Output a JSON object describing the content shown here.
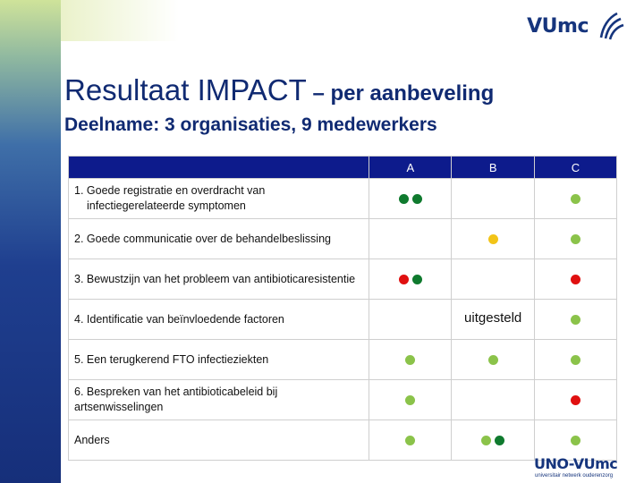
{
  "header": {
    "logo_text": "VUmc"
  },
  "slide": {
    "title_main": "Resultaat IMPACT",
    "title_sub": " – per aanbeveling",
    "subtitle": "Deelname: 3 organisaties, 9 medewerkers"
  },
  "table": {
    "columns": [
      "",
      "A",
      "B",
      "C"
    ],
    "rows": [
      {
        "label_line1": "1. Goede registratie en overdracht van",
        "label_line2": "infectiegerelateerde symptomen",
        "A": [
          "dark-green",
          "dark-green"
        ],
        "B": [],
        "C": [
          "light-green"
        ]
      },
      {
        "label_line1": "2. Goede communicatie over de behandelbeslissing",
        "label_line2": "",
        "A": [],
        "B": [
          "yellow"
        ],
        "C": [
          "light-green"
        ]
      },
      {
        "label_line1": "3. Bewustzijn van het probleem van antibioticaresistentie",
        "label_line2": "",
        "A": [
          "red",
          "dark-green"
        ],
        "B": [],
        "C": [
          "red"
        ]
      },
      {
        "label_line1": "4. Identificatie van beïnvloedende factoren",
        "label_line2": "",
        "A": [],
        "B_text": "uitgesteld",
        "C": [
          "light-green"
        ]
      },
      {
        "label_line1": "5. Een terugkerend FTO infectieziekten",
        "label_line2": "",
        "A": [
          "light-green"
        ],
        "B": [
          "light-green"
        ],
        "C": [
          "light-green"
        ]
      },
      {
        "label_line1": "6. Bespreken van het antibioticabeleid bij",
        "label_line2": "artsenwisselingen",
        "A": [
          "light-green"
        ],
        "B": [],
        "C": [
          "red"
        ]
      },
      {
        "label_line1": "Anders",
        "label_line2": "",
        "A": [
          "light-green"
        ],
        "B": [
          "light-green",
          "dark-green"
        ],
        "C": [
          "light-green"
        ]
      }
    ]
  },
  "colors": {
    "light-green": "#8bc34a",
    "dark-green": "#0f7a2e",
    "yellow": "#f2c418",
    "red": "#e01010",
    "header_bg": "#0d1b8c",
    "title": "#102a72"
  },
  "footer": {
    "logo_text": "UNO-VUmc",
    "logo_sub": "universitair netwerk ouderenzorg"
  }
}
